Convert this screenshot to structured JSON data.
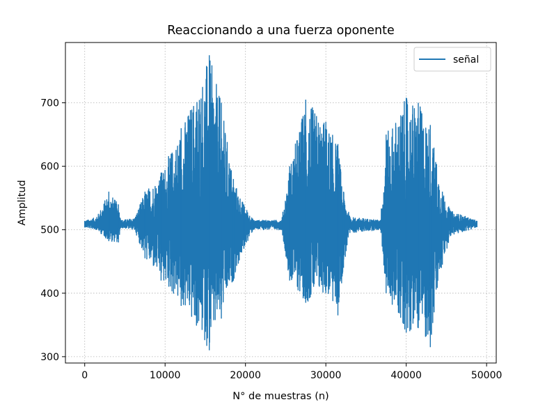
{
  "chart_data": {
    "type": "line",
    "title": "Reaccionando a una fuerza oponente",
    "xlabel": "N° de muestras (n)",
    "ylabel": "Amplitud",
    "xlim": [
      -2400,
      51200
    ],
    "ylim": [
      290,
      795
    ],
    "xticks": [
      0,
      10000,
      20000,
      30000,
      40000,
      50000
    ],
    "xtick_labels": [
      "0",
      "10000",
      "20000",
      "30000",
      "40000",
      "50000"
    ],
    "yticks": [
      300,
      400,
      500,
      600,
      700
    ],
    "ytick_labels": [
      "300",
      "400",
      "500",
      "600",
      "700"
    ],
    "grid": true,
    "legend_position": "top-right",
    "series": [
      {
        "name": "señal",
        "color": "#1f77b4",
        "baseline": 509,
        "sample_count": 48800,
        "envelope_description_points": [
          {
            "x": 0,
            "max": 514,
            "min": 504
          },
          {
            "x": 1500,
            "max": 520,
            "min": 500
          },
          {
            "x": 3000,
            "max": 560,
            "min": 482
          },
          {
            "x": 4200,
            "max": 540,
            "min": 480
          },
          {
            "x": 4500,
            "max": 515,
            "min": 503
          },
          {
            "x": 6200,
            "max": 518,
            "min": 500
          },
          {
            "x": 7500,
            "max": 560,
            "min": 455
          },
          {
            "x": 9500,
            "max": 590,
            "min": 420
          },
          {
            "x": 12000,
            "max": 660,
            "min": 380
          },
          {
            "x": 15500,
            "max": 775,
            "min": 310
          },
          {
            "x": 17000,
            "max": 700,
            "min": 360
          },
          {
            "x": 18500,
            "max": 580,
            "min": 420
          },
          {
            "x": 19800,
            "max": 540,
            "min": 470
          },
          {
            "x": 21000,
            "max": 515,
            "min": 500
          },
          {
            "x": 24500,
            "max": 515,
            "min": 500
          },
          {
            "x": 25500,
            "max": 600,
            "min": 420
          },
          {
            "x": 27500,
            "max": 705,
            "min": 385
          },
          {
            "x": 30000,
            "max": 670,
            "min": 400
          },
          {
            "x": 31500,
            "max": 635,
            "min": 365
          },
          {
            "x": 32200,
            "max": 560,
            "min": 440
          },
          {
            "x": 33000,
            "max": 520,
            "min": 495
          },
          {
            "x": 36800,
            "max": 515,
            "min": 500
          },
          {
            "x": 37500,
            "max": 650,
            "min": 400
          },
          {
            "x": 40000,
            "max": 708,
            "min": 338
          },
          {
            "x": 41500,
            "max": 700,
            "min": 345
          },
          {
            "x": 43000,
            "max": 665,
            "min": 315
          },
          {
            "x": 44500,
            "max": 560,
            "min": 445
          },
          {
            "x": 45500,
            "max": 530,
            "min": 490
          },
          {
            "x": 48800,
            "max": 514,
            "min": 504
          }
        ]
      }
    ]
  }
}
